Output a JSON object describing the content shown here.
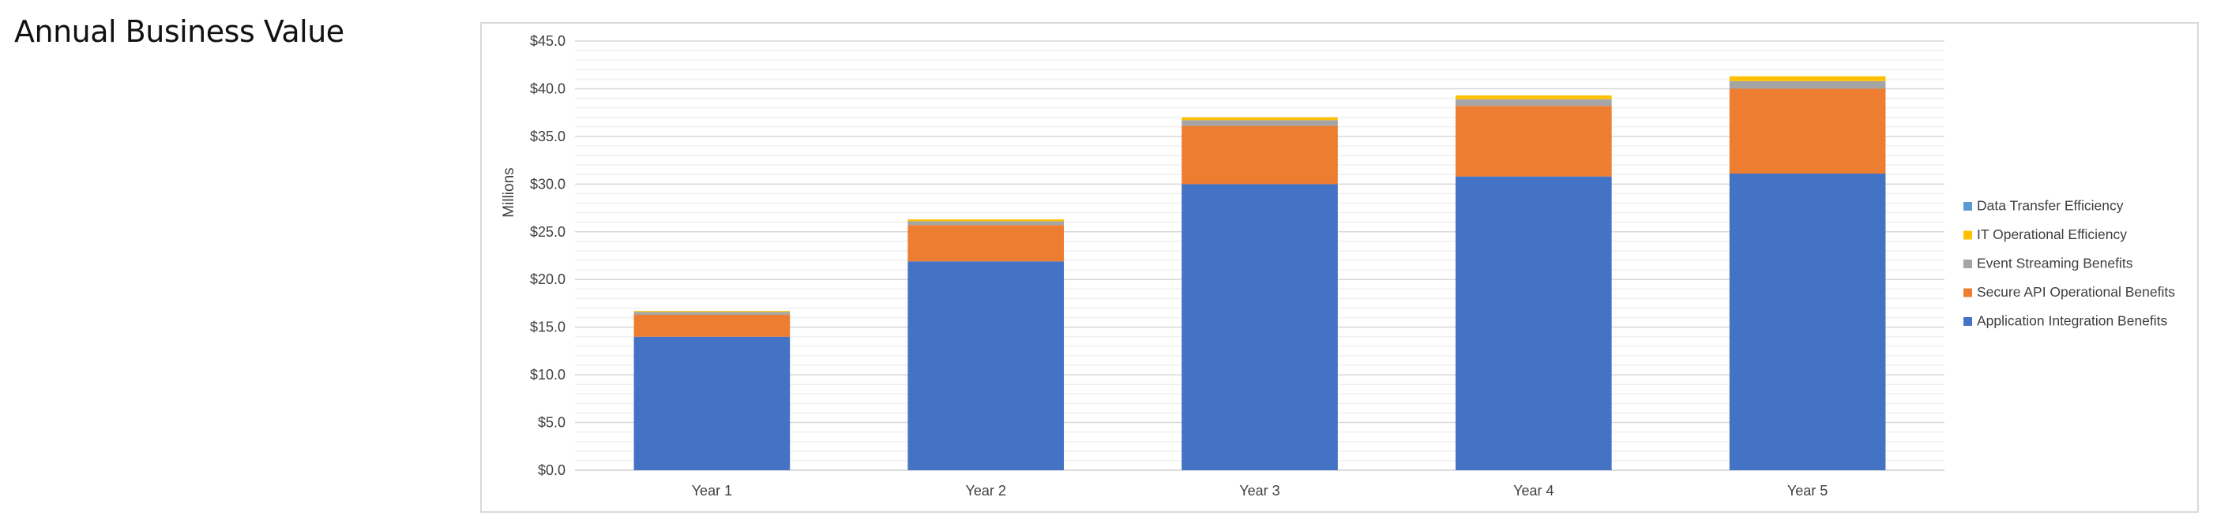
{
  "page": {
    "title": "Annual Business Value"
  },
  "chart_data": {
    "type": "bar",
    "stacked": true,
    "title": "",
    "xlabel": "",
    "ylabel": "Millions",
    "ylim": [
      0,
      45
    ],
    "y_tick_step": 5,
    "y_minor_step": 1,
    "y_tick_labels": [
      "$0.0",
      "$5.0",
      "$10.0",
      "$15.0",
      "$20.0",
      "$25.0",
      "$30.0",
      "$35.0",
      "$40.0",
      "$45.0"
    ],
    "grid": true,
    "legend_position": "right",
    "categories": [
      "Year 1",
      "Year 2",
      "Year 3",
      "Year 4",
      "Year 5"
    ],
    "series": [
      {
        "name": "Application Integration Benefits",
        "color": "#4472C4",
        "values": [
          14.0,
          21.9,
          30.0,
          30.8,
          31.1
        ]
      },
      {
        "name": "Secure API Operational Benefits",
        "color": "#ED7D31",
        "values": [
          2.3,
          3.8,
          6.1,
          7.4,
          8.9
        ]
      },
      {
        "name": "Event Streaming Benefits",
        "color": "#A5A5A5",
        "values": [
          0.3,
          0.4,
          0.6,
          0.7,
          0.8
        ]
      },
      {
        "name": "IT Operational Efficiency",
        "color": "#FFC000",
        "values": [
          0.1,
          0.2,
          0.3,
          0.4,
          0.5
        ]
      },
      {
        "name": "Data Transfer Efficiency",
        "color": "#5B9BD5",
        "values": [
          0.0,
          0.0,
          0.0,
          0.0,
          0.0
        ]
      }
    ],
    "legend_order": [
      "Data Transfer Efficiency",
      "IT Operational Efficiency",
      "Event Streaming Benefits",
      "Secure API Operational Benefits",
      "Application Integration Benefits"
    ]
  }
}
